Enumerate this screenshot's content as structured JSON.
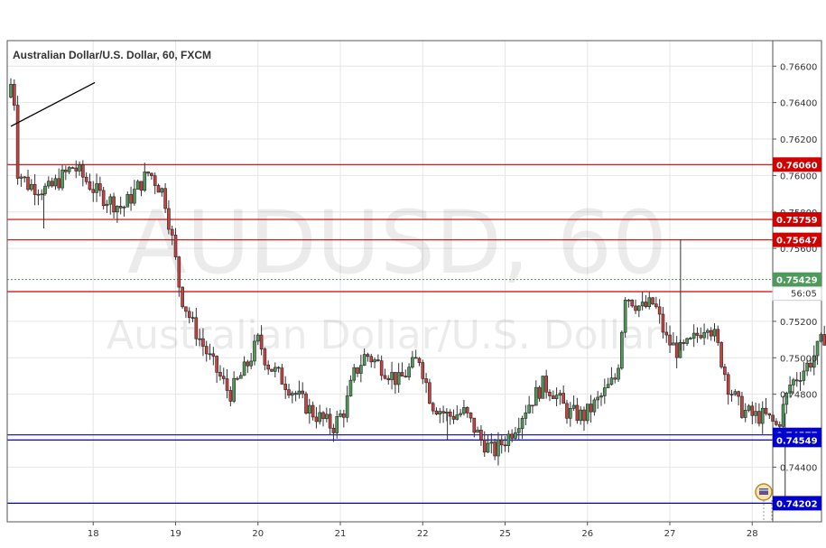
{
  "chart_data": {
    "type": "candlestick",
    "title": "Australian Dollar/U.S. Dollar, 60, FXCM",
    "watermark": {
      "symbol": "AUDUSD, 60",
      "name": "Australian Dollar/U.S. Dollar"
    },
    "ylim": [
      0.741,
      0.7674
    ],
    "y_ticks": [
      "0.76600",
      "0.76400",
      "0.76200",
      "0.76000",
      "0.75800",
      "0.75600",
      "0.75200",
      "0.75000",
      "0.74800",
      "0.74400"
    ],
    "x_labels": [
      {
        "label": "18",
        "day": 1
      },
      {
        "label": "19",
        "day": 2
      },
      {
        "label": "20",
        "day": 3
      },
      {
        "label": "21",
        "day": 4
      },
      {
        "label": "22",
        "day": 5
      },
      {
        "label": "25",
        "day": 6
      },
      {
        "label": "26",
        "day": 7
      },
      {
        "label": "27",
        "day": 8
      },
      {
        "label": "28",
        "day": 9
      }
    ],
    "levels": [
      {
        "label": "0.76060",
        "value": 0.7606,
        "color": "#d10000"
      },
      {
        "label": "0.75759",
        "value": 0.75759,
        "color": "#d10000"
      },
      {
        "label": "0.75647",
        "value": 0.75647,
        "color": "#d10000"
      },
      {
        "label": "0.75363",
        "value": 0.75363,
        "color": "#d10000"
      },
      {
        "label": "0.74577",
        "value": 0.74577,
        "color": "#0000cc"
      },
      {
        "label": "0.74549",
        "value": 0.74549,
        "color": "#0000cc"
      },
      {
        "label": "0.74202",
        "value": 0.74202,
        "color": "#0000cc"
      }
    ],
    "current_price": {
      "label": "0.75429",
      "value": 0.75429,
      "countdown": "56:05",
      "color": "#4e9a5a"
    },
    "trend_line": {
      "from": {
        "day": 0.0,
        "value": 0.7627
      },
      "to": {
        "day": 1.02,
        "value": 0.7651
      }
    },
    "price_path": [
      [
        0.0,
        0.7643
      ],
      [
        0.07,
        0.7655
      ],
      [
        0.12,
        0.7603
      ],
      [
        0.25,
        0.7595
      ],
      [
        0.5,
        0.7592
      ],
      [
        0.8,
        0.7605
      ],
      [
        1.1,
        0.759
      ],
      [
        1.4,
        0.7582
      ],
      [
        1.72,
        0.7602
      ],
      [
        1.9,
        0.759
      ],
      [
        2.02,
        0.756
      ],
      [
        2.1,
        0.7535
      ],
      [
        2.25,
        0.7518
      ],
      [
        2.45,
        0.75
      ],
      [
        2.7,
        0.748
      ],
      [
        2.9,
        0.7495
      ],
      [
        3.05,
        0.751
      ],
      [
        3.15,
        0.7497
      ],
      [
        3.3,
        0.749
      ],
      [
        3.5,
        0.748
      ],
      [
        3.7,
        0.747
      ],
      [
        3.95,
        0.7462
      ],
      [
        4.1,
        0.7472
      ],
      [
        4.2,
        0.749
      ],
      [
        4.35,
        0.7502
      ],
      [
        4.55,
        0.7495
      ],
      [
        4.75,
        0.7487
      ],
      [
        5.0,
        0.75
      ],
      [
        5.15,
        0.7475
      ],
      [
        5.35,
        0.7468
      ],
      [
        5.55,
        0.747
      ],
      [
        5.75,
        0.7455
      ],
      [
        5.9,
        0.7448
      ],
      [
        6.1,
        0.7458
      ],
      [
        6.3,
        0.7473
      ],
      [
        6.5,
        0.7485
      ],
      [
        6.62,
        0.7482
      ],
      [
        6.8,
        0.747
      ],
      [
        7.0,
        0.7468
      ],
      [
        7.2,
        0.7478
      ],
      [
        7.4,
        0.749
      ],
      [
        7.5,
        0.7535
      ],
      [
        7.7,
        0.7527
      ],
      [
        7.85,
        0.753
      ],
      [
        8.0,
        0.751
      ],
      [
        8.15,
        0.7503
      ],
      [
        8.3,
        0.7508
      ],
      [
        8.5,
        0.752
      ],
      [
        8.6,
        0.751
      ],
      [
        8.75,
        0.7485
      ],
      [
        8.9,
        0.7472
      ],
      [
        9.05,
        0.7468
      ],
      [
        9.2,
        0.7468
      ],
      [
        9.35,
        0.7462
      ],
      [
        9.5,
        0.7485
      ],
      [
        9.75,
        0.7498
      ],
      [
        9.9,
        0.751
      ],
      [
        10.05,
        0.7525
      ],
      [
        10.2,
        0.753
      ],
      [
        10.35,
        0.7543
      ]
    ],
    "spikes": [
      {
        "day": 0.4,
        "low": 0.7571
      },
      {
        "day": 5.3,
        "low": 0.7455
      },
      {
        "day": 8.13,
        "high": 0.7565
      },
      {
        "day": 9.4,
        "low": 0.7419
      }
    ]
  }
}
